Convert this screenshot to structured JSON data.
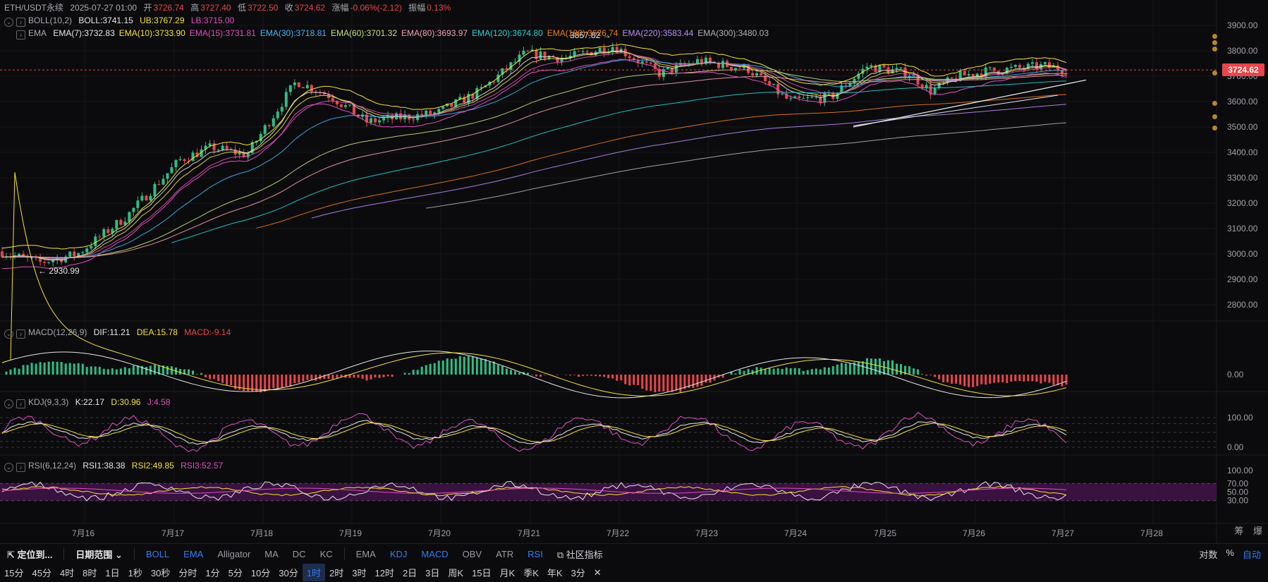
{
  "header": {
    "symbol": "ETH/USDT永续",
    "date": "2025-07-27 01:00",
    "open_label": "开",
    "open": "3726.74",
    "high_label": "高",
    "high": "3727.40",
    "low_label": "低",
    "low": "3722.50",
    "close_label": "收",
    "close": "3724.62",
    "change_label": "涨幅",
    "change": "-0.06%(-2.12)",
    "amp_label": "振幅",
    "amp": "0.13%"
  },
  "boll": {
    "name": "BOLL(10,2)",
    "mid": "BOLL:3741.15",
    "ub": "UB:3767.29",
    "lb": "LB:3715.00"
  },
  "ema": {
    "name": "EMA",
    "lines": [
      {
        "label": "EMA(7):3732.83",
        "color": "#e6e6ea"
      },
      {
        "label": "EMA(10):3733.90",
        "color": "#f2e233"
      },
      {
        "label": "EMA(15):3731.81",
        "color": "#e04ec0"
      },
      {
        "label": "EMA(30):3718.81",
        "color": "#40b6f0"
      },
      {
        "label": "EMA(60):3701.32",
        "color": "#c4e07a"
      },
      {
        "label": "EMA(80):3693.97",
        "color": "#f2a0b0"
      },
      {
        "label": "EMA(120):3674.80",
        "color": "#22d3d3"
      },
      {
        "label": "EMA(180):3626.74",
        "color": "#f07a1a"
      },
      {
        "label": "EMA(220):3583.44",
        "color": "#b58cf5"
      },
      {
        "label": "EMA(300):3480.03",
        "color": "#b0b0b0"
      }
    ]
  },
  "annotations": {
    "high_mark": "3857.82",
    "low_mark": "2930.99"
  },
  "last_price": "3724.62",
  "price_axis": [
    "3900.00",
    "3800.00",
    "3700.00",
    "3600.00",
    "3500.00",
    "3400.00",
    "3300.00",
    "3200.00",
    "3100.00",
    "3000.00",
    "2900.00",
    "2800.00"
  ],
  "macd": {
    "name": "MACD(12,26,9)",
    "dif": "DIF:11.21",
    "dea": "DEA:15.78",
    "macd": "MACD:-9.14",
    "axis": "0.00"
  },
  "kdj": {
    "name": "KDJ(9,3,3)",
    "k": "K:22.17",
    "d": "D:30.96",
    "j": "J:4.58",
    "axis": [
      "100.00",
      "0.00"
    ]
  },
  "rsi": {
    "name": "RSI(6,12,24)",
    "r1": "RSI1:38.38",
    "r2": "RSI2:49.85",
    "r3": "RSI3:52.57",
    "axis": [
      "100.00",
      "70.00",
      "50.00",
      "30.00"
    ]
  },
  "dates": [
    "7月16",
    "7月17",
    "7月18",
    "7月19",
    "7月20",
    "7月21",
    "7月22",
    "7月23",
    "7月24",
    "7月25",
    "7月26",
    "7月27",
    "7月28"
  ],
  "axis_right_labels": [
    "筹",
    "爆"
  ],
  "toolbar": {
    "locate": "定位到...",
    "date_range": "日期范围",
    "main_indicators": [
      "BOLL",
      "EMA",
      "Alligator",
      "MA",
      "DC",
      "KC"
    ],
    "sub_indicators": [
      "EMA",
      "KDJ",
      "MACD",
      "OBV",
      "ATR",
      "RSI"
    ],
    "community": "社区指标",
    "right": [
      "对数",
      "%",
      "自动"
    ]
  },
  "intervals": [
    "15分",
    "45分",
    "4时",
    "8时",
    "1日",
    "1秒",
    "30秒",
    "分时",
    "1分",
    "5分",
    "10分",
    "30分",
    "1时",
    "2时",
    "3时",
    "12时",
    "2日",
    "3日",
    "周K",
    "15日",
    "月K",
    "季K",
    "年K",
    "3分"
  ],
  "active_interval": "1时"
}
